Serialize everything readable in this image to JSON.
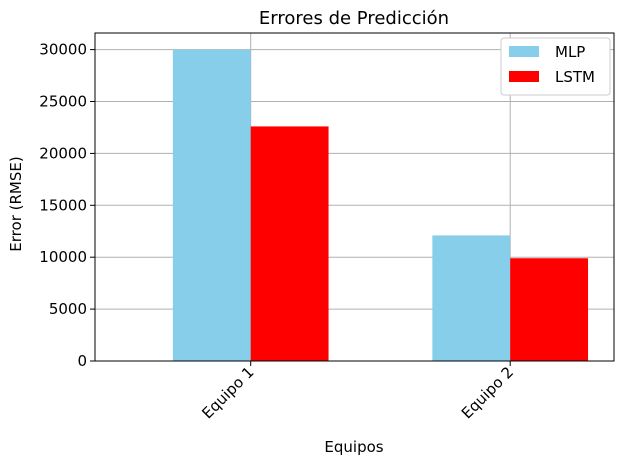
{
  "chart_data": {
    "type": "bar",
    "title": "Errores de Predicción",
    "xlabel": "Equipos",
    "ylabel": "Error (RMSE)",
    "categories": [
      "Equipo 1",
      "Equipo 2"
    ],
    "series": [
      {
        "name": "MLP",
        "values": [
          30000,
          12100
        ],
        "color": "#87ceeb"
      },
      {
        "name": "LSTM",
        "values": [
          22600,
          9900
        ],
        "color": "#ff0000"
      }
    ],
    "ylim": [
      0,
      31600
    ],
    "yticks": [
      0,
      5000,
      10000,
      15000,
      20000,
      25000,
      30000
    ],
    "grid": true,
    "legend": {
      "position": "top-right"
    },
    "xtick_rotation_deg": 45
  }
}
